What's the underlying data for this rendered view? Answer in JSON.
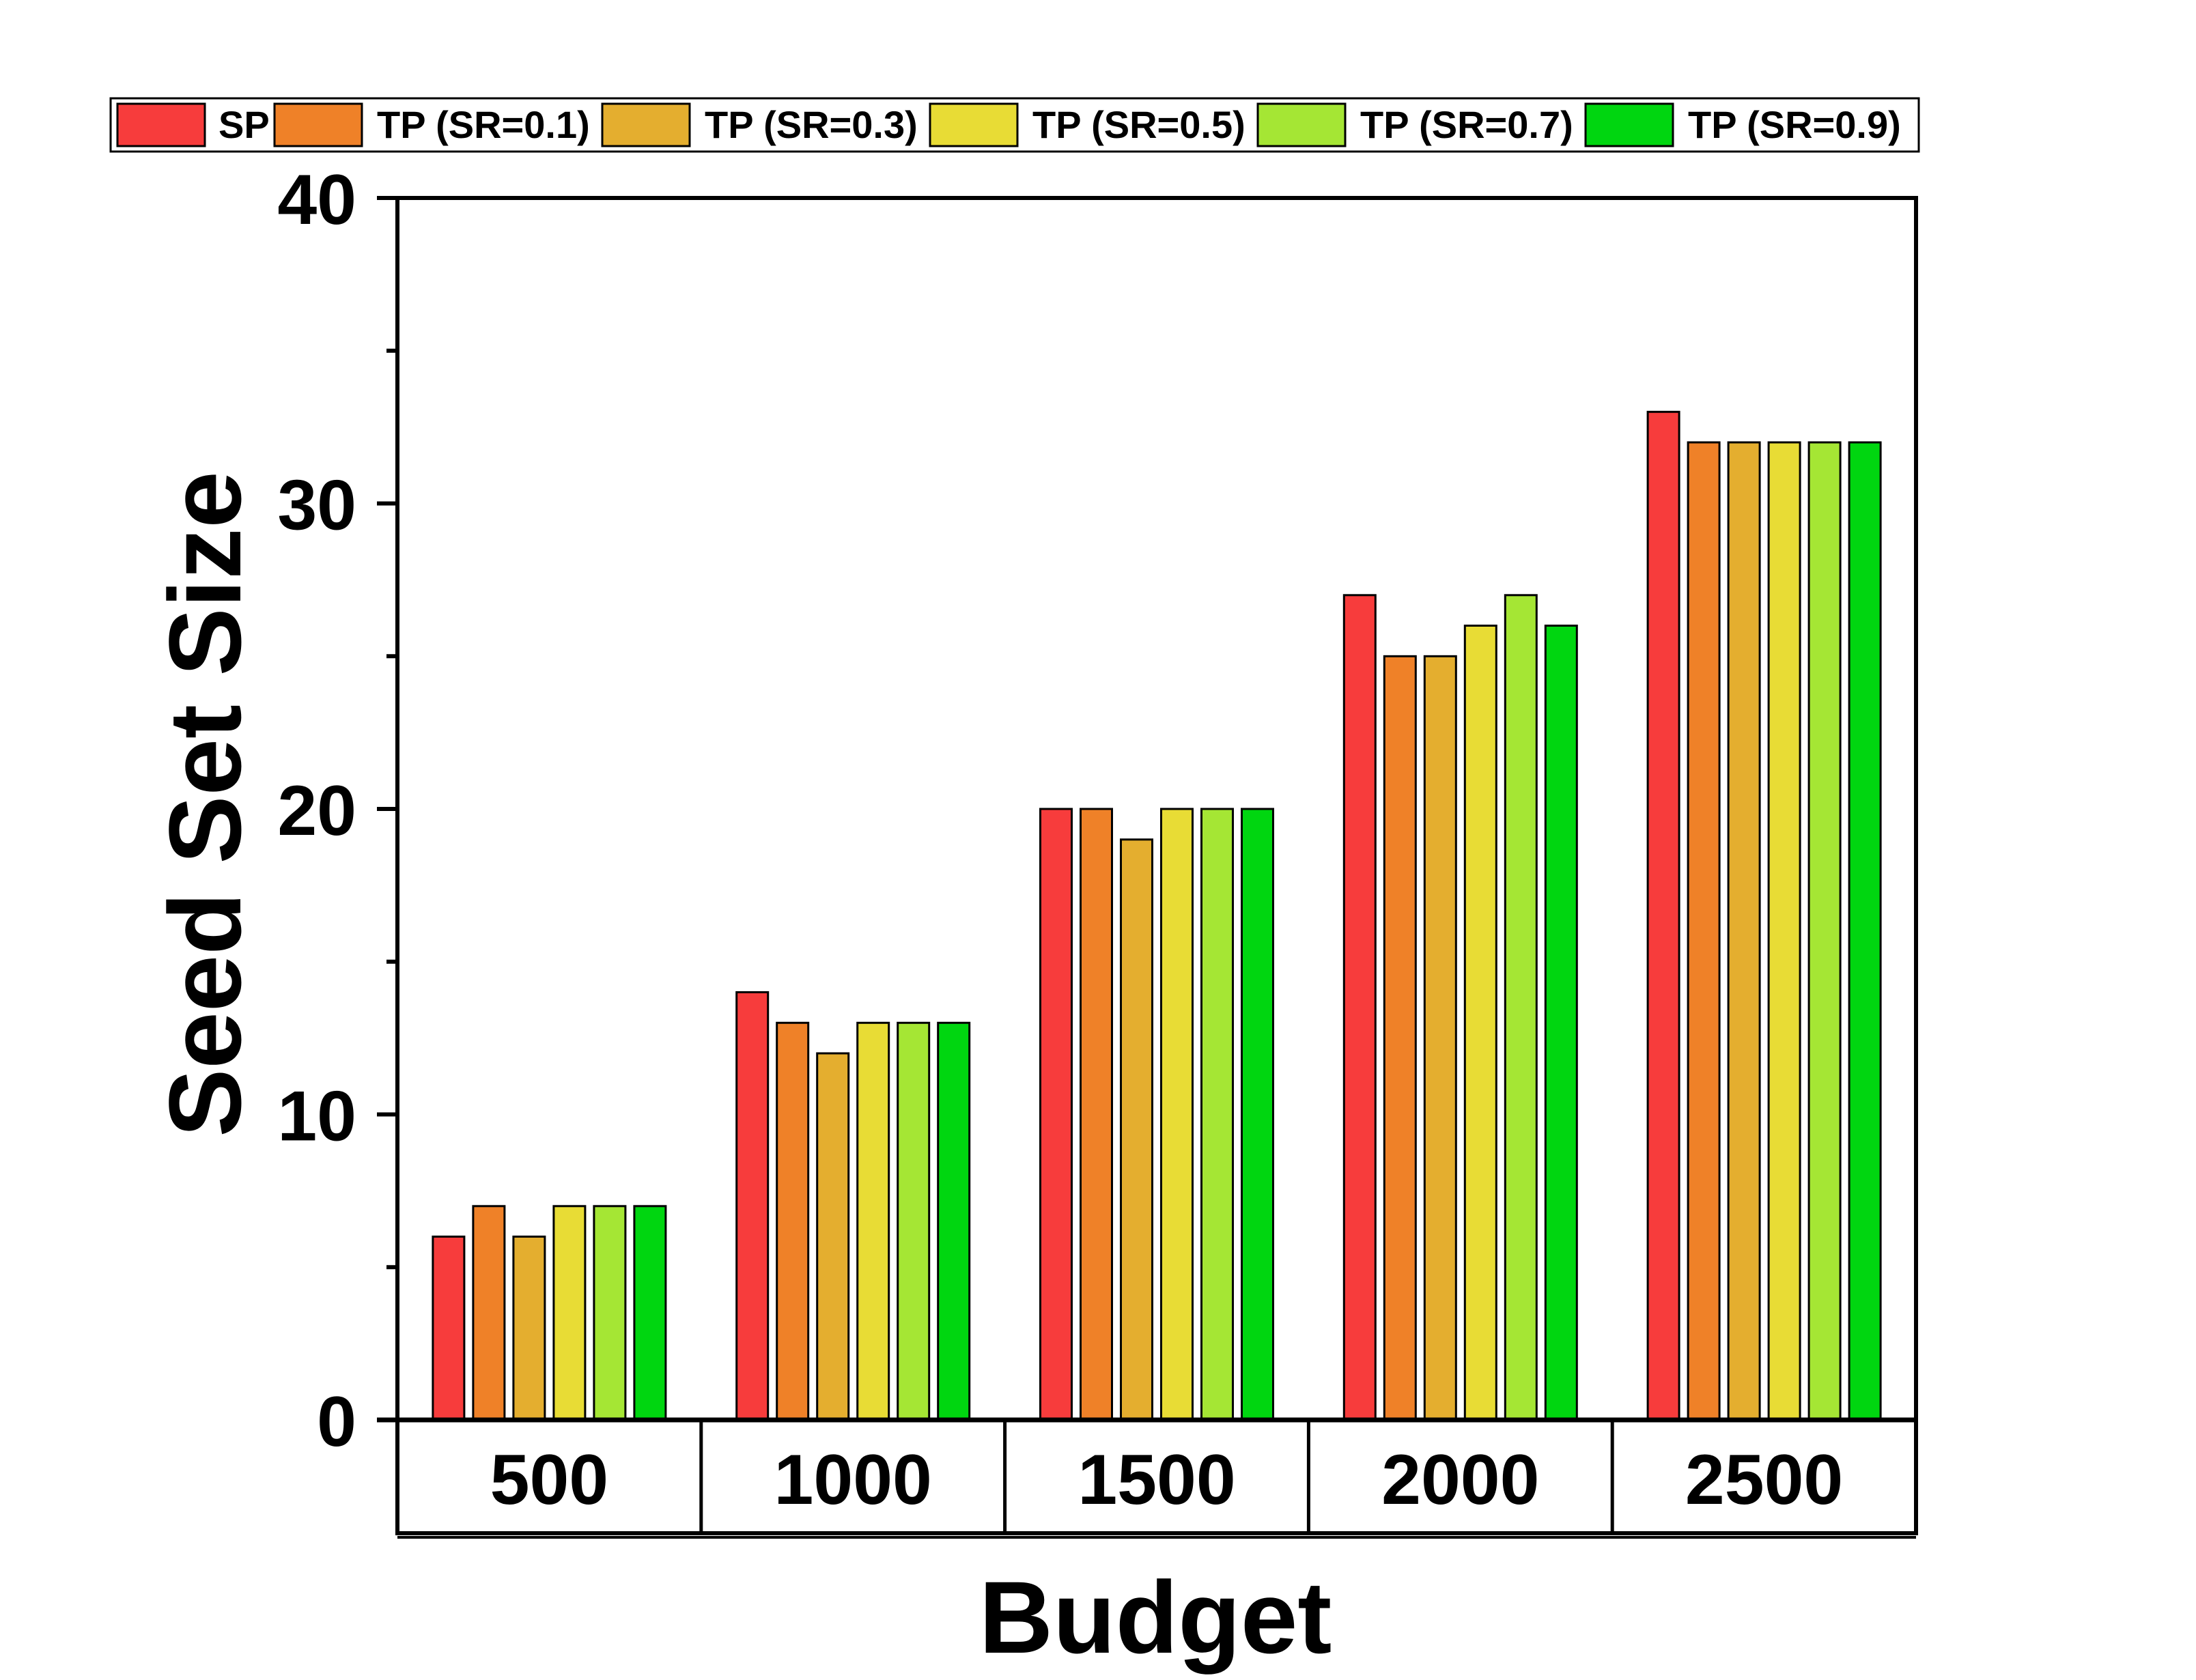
{
  "chart_data": {
    "type": "bar",
    "title": "",
    "xlabel": "Budget",
    "ylabel": "Seed Set Size",
    "ylim": [
      0,
      40
    ],
    "yticks": [
      0,
      10,
      20,
      30,
      40
    ],
    "categories": [
      "500",
      "1000",
      "1500",
      "2000",
      "2500"
    ],
    "legend_position": "top",
    "series": [
      {
        "name": "SP",
        "color": "#f73c3c",
        "values": [
          6,
          14,
          20,
          27,
          33
        ]
      },
      {
        "name": "TP (SR=0.1)",
        "color": "#ef8128",
        "values": [
          7,
          13,
          20,
          25,
          32
        ]
      },
      {
        "name": "TP (SR=0.3)",
        "color": "#e4ae2f",
        "values": [
          6,
          12,
          19,
          25,
          32
        ]
      },
      {
        "name": "TP (SR=0.5)",
        "color": "#e8dc35",
        "values": [
          7,
          13,
          20,
          26,
          32
        ]
      },
      {
        "name": "TP (SR=0.7)",
        "color": "#a5e634",
        "values": [
          7,
          13,
          20,
          27,
          32
        ]
      },
      {
        "name": "TP (SR=0.9)",
        "color": "#00d610",
        "values": [
          7,
          13,
          20,
          26,
          32
        ]
      }
    ]
  }
}
